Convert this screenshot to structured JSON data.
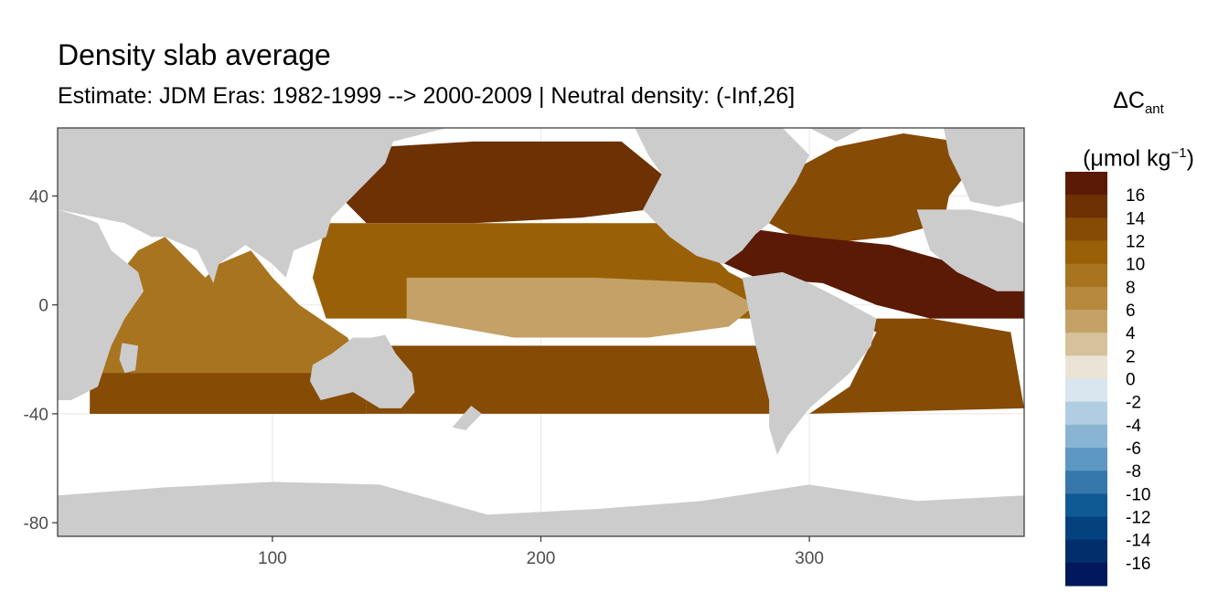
{
  "chart_data": {
    "type": "heatmap",
    "title": "Density slab average",
    "subtitle": "Estimate: JDM Eras: 1982-1999 --> 2000-2009 | Neutral density: (-Inf,26]",
    "xlabel": "",
    "ylabel": "",
    "xlim": [
      20,
      380
    ],
    "ylim": [
      -85,
      65
    ],
    "x_ticks": [
      100,
      200,
      300
    ],
    "y_ticks": [
      40,
      0,
      -40,
      -80
    ],
    "grid": true,
    "legend": {
      "placement": "right",
      "title_main": "ΔC",
      "title_sub": "ant",
      "unit_prefix": "(μmol kg",
      "unit_exp": "−1",
      "unit_suffix": ")",
      "labels": [
        "16",
        "14",
        "12",
        "10",
        "8",
        "6",
        "4",
        "2",
        "0",
        "-2",
        "-4",
        "-6",
        "-8",
        "-10",
        "-12",
        "-14",
        "-16"
      ],
      "colors": [
        "#5a1a06",
        "#6e3104",
        "#864b05",
        "#996007",
        "#a8741f",
        "#b6893e",
        "#c4a267",
        "#d6c29a",
        "#ebe3d6",
        "#d9e6ef",
        "#b0cde2",
        "#89b5d3",
        "#5d98c2",
        "#3678ab",
        "#0f5a94",
        "#04427f",
        "#032e6c",
        "#02185c"
      ]
    },
    "ocean_regions": [
      {
        "name": "north-pacific",
        "value": 13,
        "points": [
          [
            125,
            40
          ],
          [
            140,
            58
          ],
          [
            175,
            60
          ],
          [
            205,
            60
          ],
          [
            230,
            60
          ],
          [
            245,
            48
          ],
          [
            240,
            35
          ],
          [
            215,
            32
          ],
          [
            175,
            30
          ],
          [
            135,
            30
          ]
        ]
      },
      {
        "name": "central-pacific",
        "value": 9,
        "points": [
          [
            120,
            30
          ],
          [
            245,
            30
          ],
          [
            262,
            20
          ],
          [
            270,
            12
          ],
          [
            278,
            8
          ],
          [
            282,
            0
          ],
          [
            282,
            -5
          ],
          [
            120,
            -5
          ],
          [
            115,
            10
          ]
        ]
      },
      {
        "name": "equatorial-pacific",
        "value": 4,
        "points": [
          [
            150,
            10
          ],
          [
            220,
            10
          ],
          [
            265,
            8
          ],
          [
            280,
            0
          ],
          [
            270,
            -8
          ],
          [
            240,
            -12
          ],
          [
            190,
            -12
          ],
          [
            150,
            -5
          ]
        ]
      },
      {
        "name": "tropical-pacific-core",
        "value": 3,
        "points": [
          [
            190,
            6
          ],
          [
            250,
            3
          ],
          [
            270,
            0
          ],
          [
            255,
            -8
          ],
          [
            210,
            -9
          ],
          [
            190,
            -4
          ]
        ]
      },
      {
        "name": "south-pacific",
        "value": 12,
        "points": [
          [
            135,
            -15
          ],
          [
            285,
            -15
          ],
          [
            287,
            -30
          ],
          [
            287,
            -40
          ],
          [
            135,
            -40
          ]
        ]
      },
      {
        "name": "gulf-of-alaska",
        "value": 14,
        "points": [
          [
            180,
            50
          ],
          [
            205,
            55
          ],
          [
            225,
            50
          ],
          [
            215,
            42
          ],
          [
            190,
            42
          ]
        ]
      },
      {
        "name": "indian-ocean",
        "value": 7,
        "points": [
          [
            32,
            -38
          ],
          [
            40,
            -10
          ],
          [
            42,
            10
          ],
          [
            50,
            20
          ],
          [
            60,
            25
          ],
          [
            75,
            10
          ],
          [
            80,
            15
          ],
          [
            92,
            20
          ],
          [
            100,
            10
          ],
          [
            110,
            0
          ],
          [
            128,
            -12
          ],
          [
            135,
            -25
          ],
          [
            135,
            -40
          ],
          [
            32,
            -40
          ]
        ]
      },
      {
        "name": "south-indian",
        "value": 12,
        "points": [
          [
            32,
            -25
          ],
          [
            135,
            -25
          ],
          [
            135,
            -40
          ],
          [
            32,
            -40
          ]
        ]
      },
      {
        "name": "north-atlantic",
        "value": 12,
        "points": [
          [
            285,
            30
          ],
          [
            295,
            50
          ],
          [
            310,
            58
          ],
          [
            335,
            63
          ],
          [
            355,
            60
          ],
          [
            360,
            50
          ],
          [
            352,
            40
          ],
          [
            350,
            30
          ],
          [
            330,
            25
          ],
          [
            300,
            22
          ]
        ]
      },
      {
        "name": "tropical-atlantic",
        "value": 16,
        "points": [
          [
            262,
            18
          ],
          [
            278,
            28
          ],
          [
            300,
            25
          ],
          [
            330,
            22
          ],
          [
            355,
            15
          ],
          [
            380,
            5
          ],
          [
            380,
            -5
          ],
          [
            345,
            -5
          ],
          [
            325,
            0
          ],
          [
            305,
            8
          ],
          [
            280,
            10
          ]
        ]
      },
      {
        "name": "south-atlantic",
        "value": 12,
        "points": [
          [
            312,
            -5
          ],
          [
            345,
            -5
          ],
          [
            375,
            -10
          ],
          [
            380,
            -38
          ],
          [
            300,
            -40
          ],
          [
            315,
            -30
          ],
          [
            320,
            -20
          ],
          [
            325,
            -10
          ]
        ]
      }
    ],
    "land_regions": [
      {
        "name": "south-america",
        "value": null,
        "points": [
          [
            275,
            10
          ],
          [
            290,
            12
          ],
          [
            300,
            8
          ],
          [
            310,
            3
          ],
          [
            325,
            -5
          ],
          [
            323,
            -15
          ],
          [
            315,
            -25
          ],
          [
            300,
            -38
          ],
          [
            292,
            -48
          ],
          [
            288,
            -55
          ],
          [
            285,
            -45
          ],
          [
            285,
            -35
          ],
          [
            280,
            -15
          ],
          [
            278,
            -5
          ]
        ]
      },
      {
        "name": "north-america",
        "value": null,
        "points": [
          [
            235,
            65
          ],
          [
            240,
            55
          ],
          [
            245,
            48
          ],
          [
            238,
            35
          ],
          [
            248,
            25
          ],
          [
            258,
            18
          ],
          [
            268,
            15
          ],
          [
            275,
            20
          ],
          [
            280,
            26
          ],
          [
            285,
            30
          ],
          [
            295,
            45
          ],
          [
            300,
            55
          ],
          [
            290,
            65
          ]
        ]
      },
      {
        "name": "africa",
        "value": null,
        "points": [
          [
            20,
            35
          ],
          [
            30,
            32
          ],
          [
            35,
            30
          ],
          [
            40,
            20
          ],
          [
            50,
            12
          ],
          [
            52,
            5
          ],
          [
            45,
            -5
          ],
          [
            40,
            -15
          ],
          [
            35,
            -30
          ],
          [
            25,
            -35
          ],
          [
            20,
            -35
          ]
        ]
      },
      {
        "name": "africa-west",
        "value": null,
        "points": [
          [
            340,
            35
          ],
          [
            352,
            35
          ],
          [
            360,
            35
          ],
          [
            375,
            32
          ],
          [
            380,
            30
          ],
          [
            380,
            5
          ],
          [
            370,
            5
          ],
          [
            355,
            12
          ],
          [
            345,
            20
          ]
        ]
      },
      {
        "name": "eurasia",
        "value": null,
        "points": [
          [
            20,
            65
          ],
          [
            20,
            35
          ],
          [
            35,
            32
          ],
          [
            45,
            30
          ],
          [
            55,
            25
          ],
          [
            60,
            25
          ],
          [
            72,
            20
          ],
          [
            78,
            8
          ],
          [
            80,
            15
          ],
          [
            90,
            22
          ],
          [
            100,
            15
          ],
          [
            105,
            10
          ],
          [
            108,
            20
          ],
          [
            120,
            25
          ],
          [
            122,
            32
          ],
          [
            128,
            38
          ],
          [
            135,
            45
          ],
          [
            142,
            52
          ],
          [
            145,
            60
          ],
          [
            165,
            65
          ]
        ]
      },
      {
        "name": "europe",
        "value": null,
        "points": [
          [
            350,
            65
          ],
          [
            352,
            55
          ],
          [
            357,
            45
          ],
          [
            360,
            38
          ],
          [
            370,
            36
          ],
          [
            380,
            38
          ],
          [
            380,
            65
          ]
        ]
      },
      {
        "name": "australia",
        "value": null,
        "points": [
          [
            115,
            -22
          ],
          [
            122,
            -18
          ],
          [
            130,
            -12
          ],
          [
            137,
            -12
          ],
          [
            142,
            -11
          ],
          [
            146,
            -18
          ],
          [
            152,
            -25
          ],
          [
            153,
            -32
          ],
          [
            148,
            -38
          ],
          [
            140,
            -38
          ],
          [
            130,
            -32
          ],
          [
            118,
            -35
          ],
          [
            114,
            -28
          ]
        ]
      },
      {
        "name": "antarctica",
        "value": null,
        "points": [
          [
            20,
            -70
          ],
          [
            60,
            -67
          ],
          [
            100,
            -65
          ],
          [
            140,
            -66
          ],
          [
            180,
            -77
          ],
          [
            220,
            -75
          ],
          [
            260,
            -72
          ],
          [
            300,
            -66
          ],
          [
            340,
            -72
          ],
          [
            380,
            -70
          ],
          [
            380,
            -85
          ],
          [
            20,
            -85
          ]
        ]
      },
      {
        "name": "madagascar",
        "value": null,
        "points": [
          [
            44,
            -14
          ],
          [
            50,
            -15
          ],
          [
            49,
            -24
          ],
          [
            45,
            -25
          ],
          [
            43,
            -20
          ]
        ]
      },
      {
        "name": "new-zealand",
        "value": null,
        "points": [
          [
            167,
            -45
          ],
          [
            174,
            -37
          ],
          [
            178,
            -40
          ],
          [
            172,
            -46
          ]
        ]
      },
      {
        "name": "greenland",
        "value": null,
        "points": [
          [
            300,
            65
          ],
          [
            310,
            60
          ],
          [
            320,
            65
          ]
        ]
      }
    ]
  }
}
